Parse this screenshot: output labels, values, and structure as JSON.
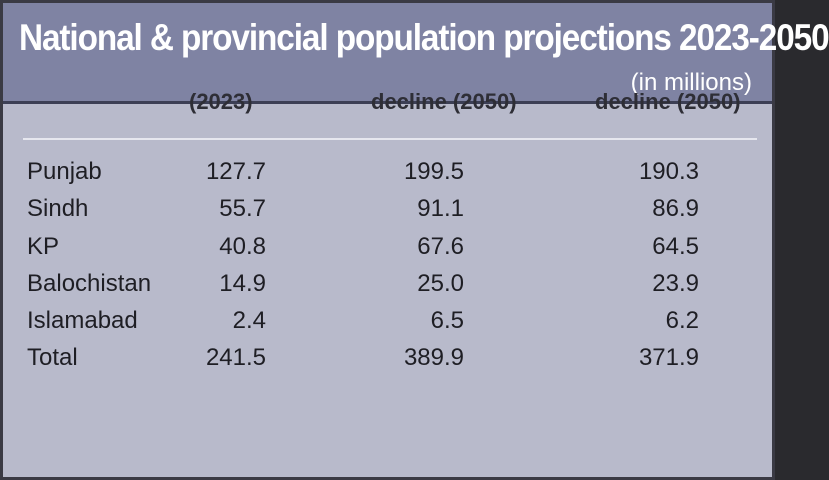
{
  "chart_data": {
    "type": "table",
    "title": "National & provincial population projections 2023-2050",
    "subtitle": "(in millions)",
    "columns": [
      "(2023)",
      "decline (2050)",
      "decline (2050)"
    ],
    "rows": [
      {
        "region": "Punjab",
        "values": [
          "127.7",
          "199.5",
          "190.3"
        ]
      },
      {
        "region": "Sindh",
        "values": [
          "55.7",
          "91.1",
          "86.9"
        ]
      },
      {
        "region": "KP",
        "values": [
          "40.8",
          "67.6",
          "64.5"
        ]
      },
      {
        "region": "Balochistan",
        "values": [
          "14.9",
          "25.0",
          "23.9"
        ]
      },
      {
        "region": "Islamabad",
        "values": [
          "2.4",
          "6.5",
          "6.2"
        ]
      },
      {
        "region": "Total",
        "values": [
          "241.5",
          "389.9",
          "371.9"
        ]
      }
    ]
  },
  "colors": {
    "header_bg": "#7f83a3",
    "body_bg": "#b8bacb",
    "title_text": "#ffffff",
    "body_text": "#1e1e24"
  }
}
